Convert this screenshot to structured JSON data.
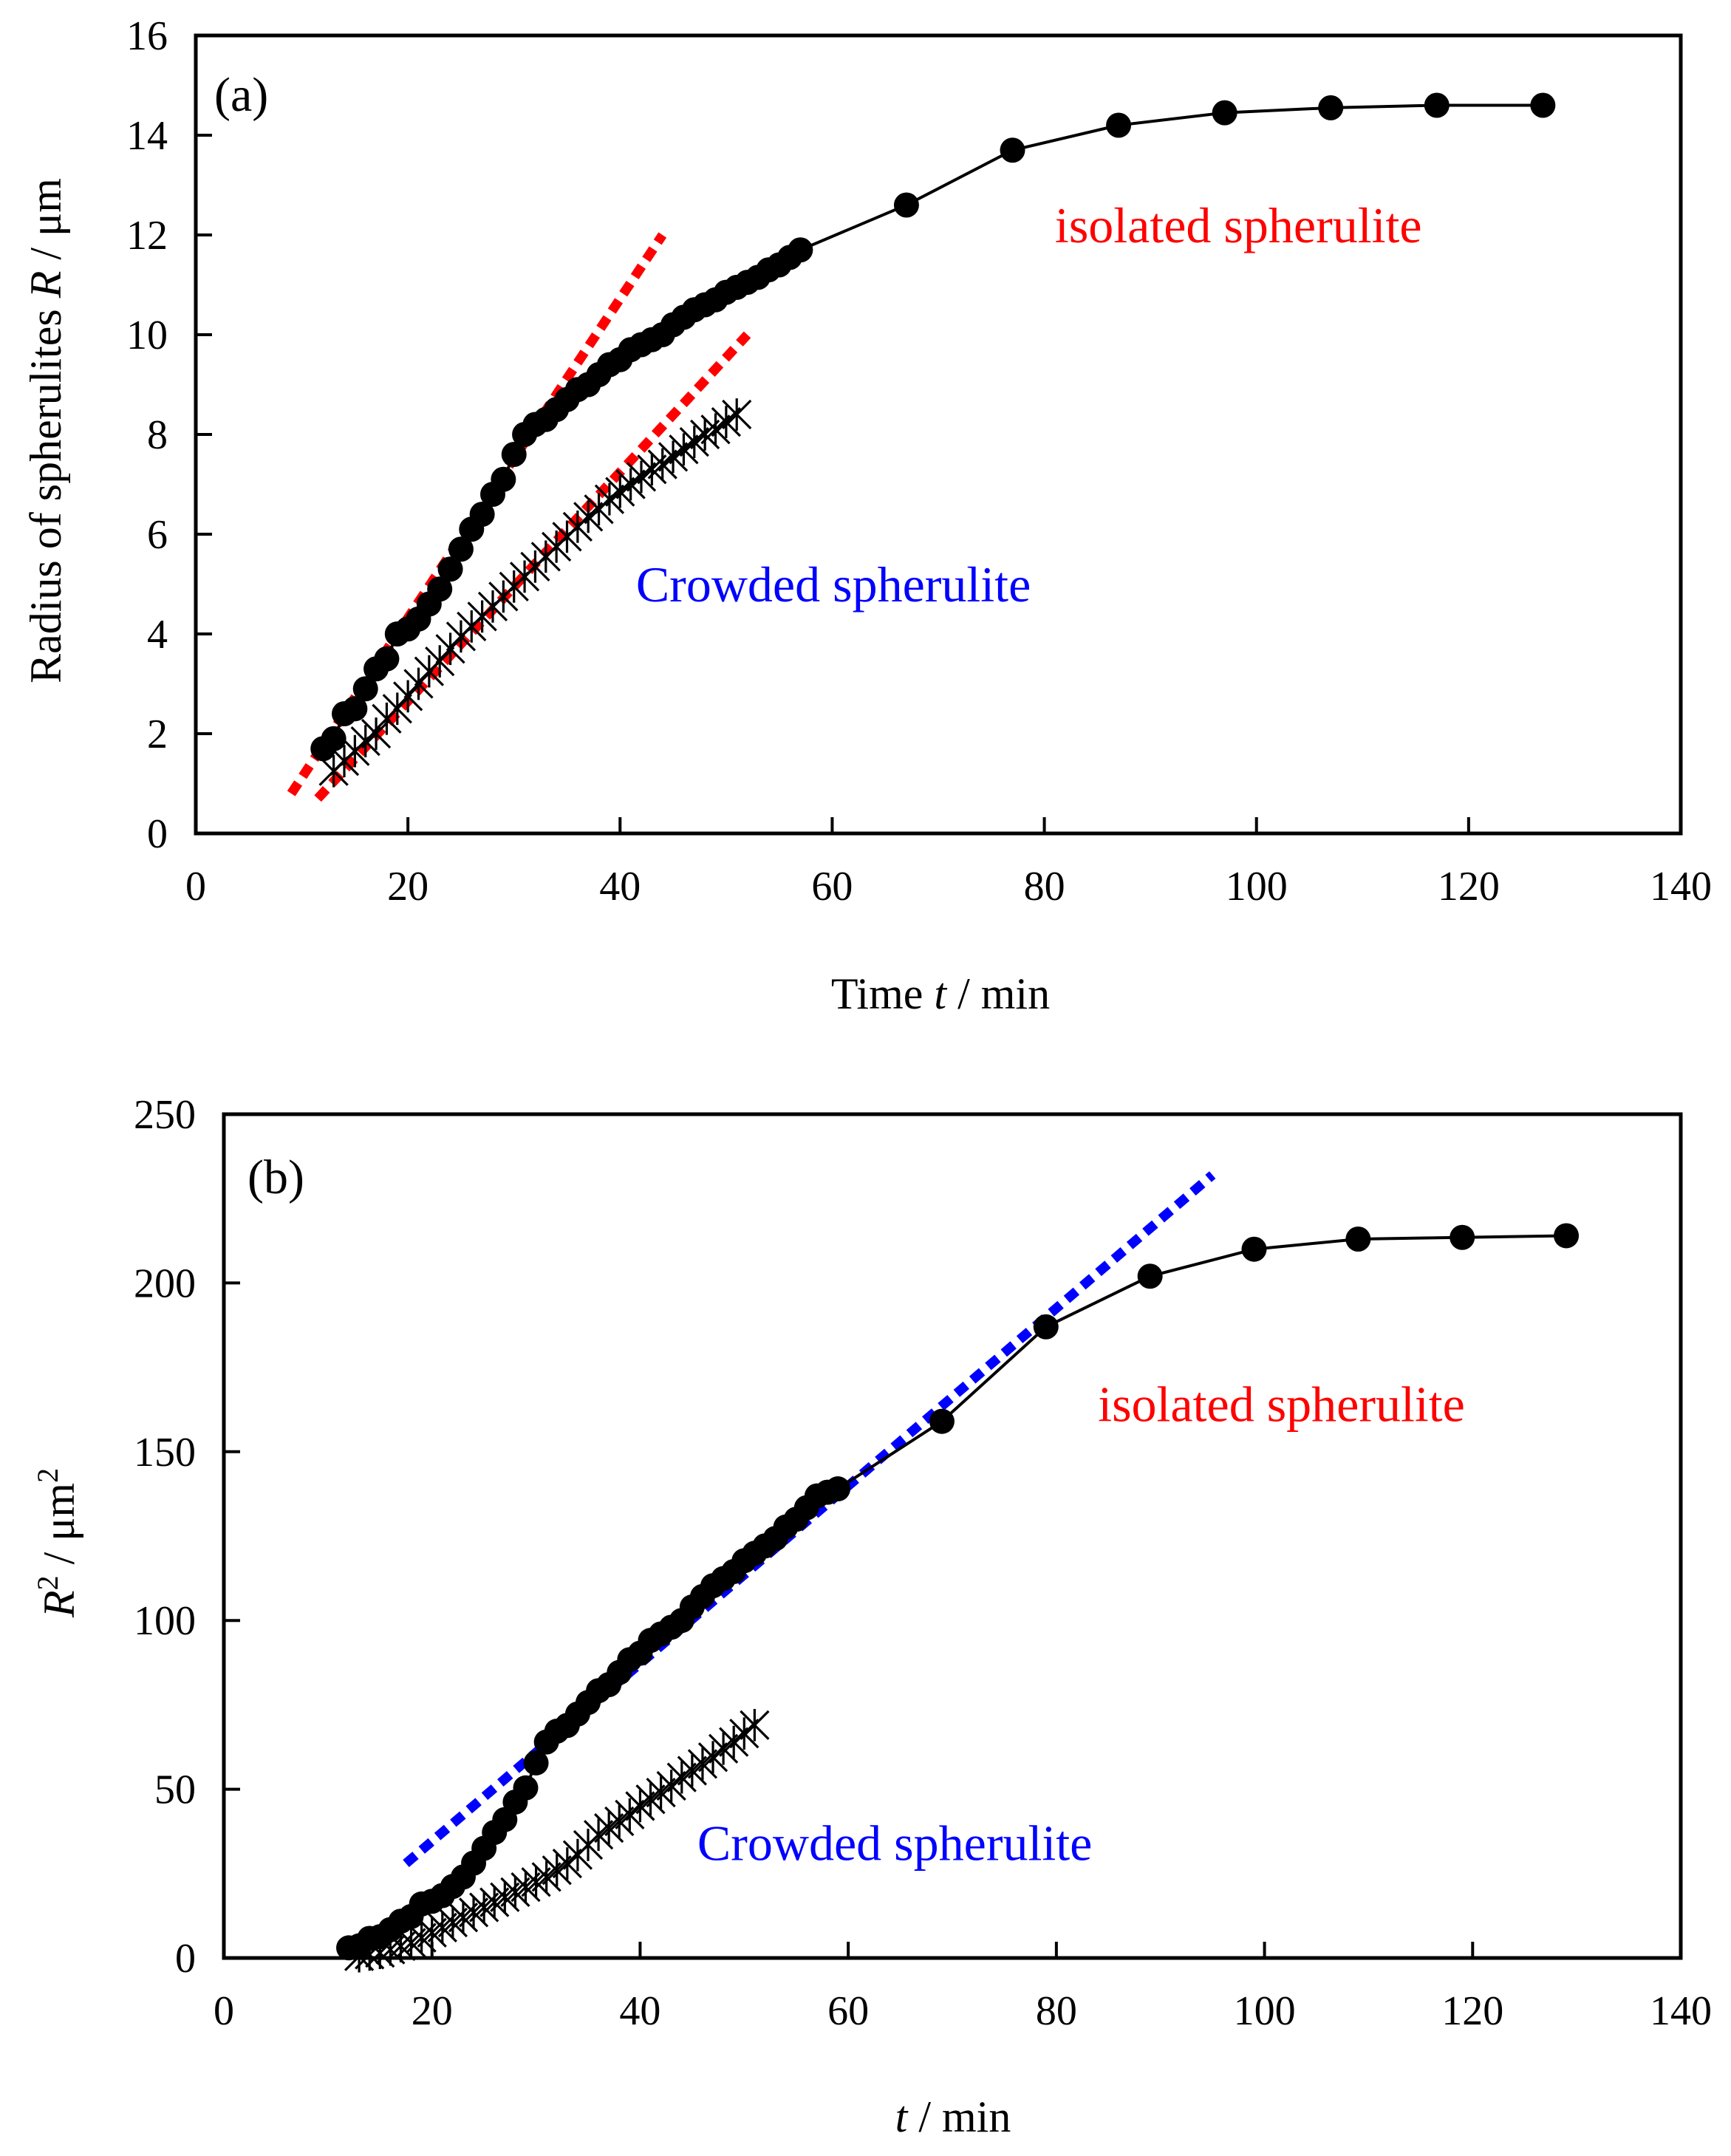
{
  "chart_data": [
    {
      "type": "scatter",
      "panel_label": "(a)",
      "title": "",
      "xlabel_pre": "Time ",
      "xlabel_var": "t",
      "xlabel_post": " / min",
      "ylabel_pre": "Radius of spherulites ",
      "ylabel_var": "R",
      "ylabel_post": " / μm",
      "xlim": [
        0,
        140
      ],
      "ylim": [
        0,
        16
      ],
      "xticks": [
        0,
        20,
        40,
        60,
        80,
        100,
        120,
        140
      ],
      "yticks": [
        0,
        2,
        4,
        6,
        8,
        10,
        12,
        14,
        16
      ],
      "grid": false,
      "series": [
        {
          "name": "isolated spherulite",
          "marker": "circle",
          "line": true,
          "color": "#000000",
          "x": [
            12,
            13,
            14,
            15,
            16,
            17,
            18,
            19,
            20,
            21,
            22,
            23,
            24,
            25,
            26,
            27,
            28,
            29,
            30,
            31,
            32,
            33,
            34,
            35,
            36,
            37,
            38,
            39,
            40,
            41,
            42,
            43,
            44,
            45,
            46,
            47,
            48,
            49,
            50,
            51,
            52,
            53,
            54,
            55,
            56,
            57,
            67,
            77,
            87,
            97,
            107,
            117,
            127
          ],
          "y": [
            1.7,
            1.9,
            2.4,
            2.5,
            2.9,
            3.3,
            3.5,
            4.0,
            4.1,
            4.3,
            4.6,
            4.9,
            5.3,
            5.7,
            6.1,
            6.4,
            6.8,
            7.1,
            7.6,
            8.0,
            8.2,
            8.3,
            8.5,
            8.7,
            8.9,
            9.0,
            9.2,
            9.4,
            9.5,
            9.7,
            9.8,
            9.9,
            10.0,
            10.2,
            10.35,
            10.5,
            10.6,
            10.7,
            10.85,
            10.95,
            11.05,
            11.15,
            11.3,
            11.4,
            11.55,
            11.7,
            12.6,
            13.7,
            14.2,
            14.45,
            14.55,
            14.6,
            14.6
          ]
        },
        {
          "name": "Crowded spherulite",
          "marker": "star",
          "line": false,
          "color": "#000000",
          "x": [
            13,
            14,
            15,
            16,
            17,
            18,
            19,
            20,
            21,
            22,
            23,
            24,
            25,
            26,
            27,
            28,
            29,
            30,
            31,
            32,
            33,
            34,
            35,
            36,
            37,
            38,
            39,
            40,
            41,
            42,
            43,
            44,
            45,
            46,
            47,
            48,
            49,
            50,
            51
          ],
          "y": [
            1.25,
            1.45,
            1.65,
            1.85,
            2.0,
            2.3,
            2.5,
            2.75,
            3.0,
            3.25,
            3.45,
            3.7,
            3.95,
            4.15,
            4.35,
            4.55,
            4.75,
            4.95,
            5.15,
            5.35,
            5.55,
            5.75,
            5.95,
            6.15,
            6.35,
            6.5,
            6.7,
            6.85,
            7.0,
            7.15,
            7.3,
            7.4,
            7.55,
            7.7,
            7.85,
            8.0,
            8.1,
            8.25,
            8.4
          ]
        }
      ],
      "fits": [
        {
          "x": [
            9,
            44
          ],
          "y": [
            0.8,
            12.0
          ],
          "color": "#ff0000"
        },
        {
          "x": [
            11.5,
            52
          ],
          "y": [
            0.7,
            10.0
          ],
          "color": "#ff0000"
        }
      ],
      "annotations": [
        {
          "text": "isolated spherulite",
          "color": "#ff0000",
          "x": 81,
          "y": 11.85
        },
        {
          "text": "Crowded spherulite",
          "color": "#0000ff",
          "x": 41.5,
          "y": 4.65
        }
      ]
    },
    {
      "type": "scatter",
      "panel_label": "(b)",
      "title": "",
      "xlabel_pre": "",
      "xlabel_var": "t",
      "xlabel_post": " / min",
      "ylabel_var": "R",
      "ylabel_sup": "2",
      "ylabel_mid": " / μm",
      "ylabel_sup2": "2",
      "xlim": [
        0,
        140
      ],
      "ylim": [
        0,
        250
      ],
      "xticks": [
        0,
        20,
        40,
        60,
        80,
        100,
        120,
        140
      ],
      "yticks": [
        0,
        50,
        100,
        150,
        200,
        250
      ],
      "grid": false,
      "series": [
        {
          "name": "isolated spherulite",
          "marker": "circle",
          "line": true,
          "color": "#000000",
          "x": [
            12,
            13,
            14,
            15,
            16,
            17,
            18,
            19,
            20,
            21,
            22,
            23,
            24,
            25,
            26,
            27,
            28,
            29,
            30,
            31,
            32,
            33,
            34,
            35,
            36,
            37,
            38,
            39,
            40,
            41,
            42,
            43,
            44,
            45,
            46,
            47,
            48,
            49,
            50,
            51,
            52,
            53,
            54,
            55,
            56,
            57,
            58,
            59,
            69,
            79,
            89,
            99,
            109,
            119,
            129
          ],
          "y": [
            3,
            3.6,
            5.8,
            6.3,
            8.4,
            10.9,
            12.3,
            16.0,
            16.8,
            18.5,
            21.2,
            24.0,
            28.1,
            32.5,
            37.2,
            41.0,
            46.2,
            50.4,
            57.8,
            64.0,
            67.2,
            68.9,
            72.3,
            75.7,
            79.2,
            81.0,
            84.6,
            88.4,
            90.3,
            94.1,
            96.0,
            98.0,
            100.0,
            104.0,
            107.1,
            110.3,
            112.4,
            114.5,
            117.7,
            119.9,
            122.1,
            124.3,
            127.7,
            130.0,
            133.4,
            136.9,
            138.0,
            139.0,
            159.0,
            187.0,
            202.0,
            210.0,
            213.0,
            213.5,
            214.0
          ]
        },
        {
          "name": "Crowded spherulite",
          "marker": "star",
          "line": false,
          "color": "#000000",
          "x": [
            13,
            14,
            15,
            16,
            17,
            18,
            19,
            20,
            21,
            22,
            23,
            24,
            25,
            26,
            27,
            28,
            29,
            30,
            31,
            32,
            33,
            34,
            35,
            36,
            37,
            38,
            39,
            40,
            41,
            42,
            43,
            44,
            45,
            46,
            47,
            48,
            49,
            50,
            51
          ],
          "y": [
            0.5,
            1.0,
            1.5,
            2.5,
            3.5,
            4.5,
            6.0,
            7.5,
            9.0,
            10.5,
            12.0,
            13.5,
            15.0,
            16.5,
            18.0,
            19.5,
            21.0,
            22.5,
            24.0,
            26.0,
            28.0,
            30.5,
            33.5,
            36.5,
            38.5,
            40.5,
            42.5,
            45.0,
            47.0,
            49.0,
            51.0,
            53.5,
            55.5,
            57.5,
            59.5,
            62.0,
            64.0,
            66.5,
            69.0
          ]
        }
      ],
      "fits": [
        {
          "x": [
            17.5,
            95
          ],
          "y": [
            28.0,
            232.0
          ],
          "color": "#0000ff"
        }
      ],
      "annotations": [
        {
          "text": "isolated spherulite",
          "color": "#ff0000",
          "x": 84,
          "y": 159
        },
        {
          "text": "Crowded spherulite",
          "color": "#0000ff",
          "x": 45.5,
          "y": 29
        }
      ]
    }
  ]
}
